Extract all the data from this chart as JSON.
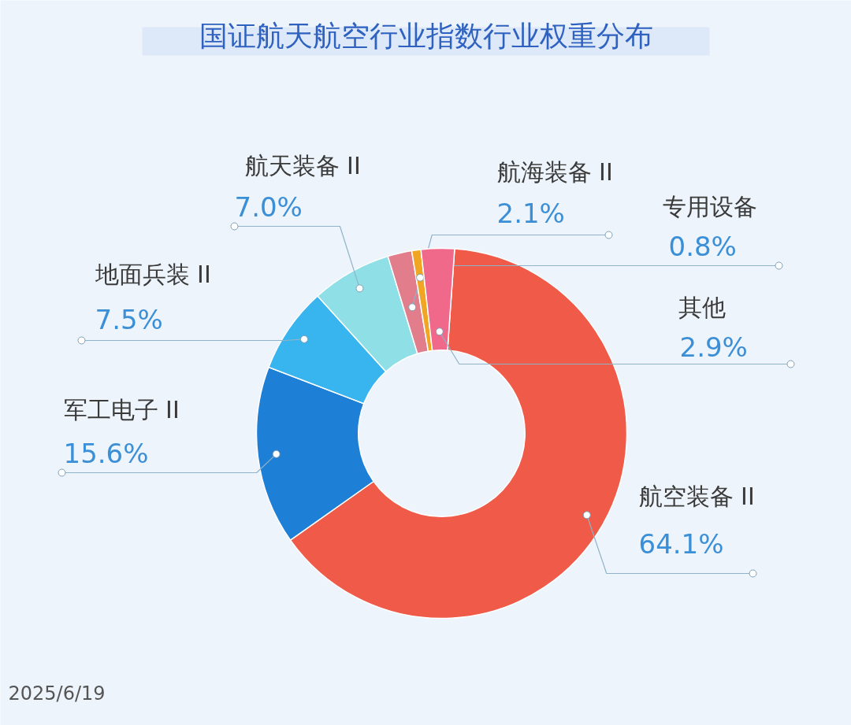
{
  "chart_data": {
    "type": "donut",
    "title": "国证航天航空行业指数行业权重分布",
    "categories": [
      "航空装备 II",
      "军工电子 II",
      "地面兵装 II",
      "航天装备 II",
      "航海装备 II",
      "专用设备",
      "其他"
    ],
    "values": [
      64.1,
      15.6,
      7.5,
      7.0,
      2.1,
      0.8,
      2.9
    ],
    "value_labels": [
      "64.1%",
      "15.6%",
      "7.5%",
      "7.0%",
      "2.1%",
      "0.8%",
      "2.9%"
    ],
    "colors": [
      "#f05a48",
      "#1e7fd6",
      "#38b4ee",
      "#8fe0e6",
      "#e27d8c",
      "#f0a623",
      "#f0688a"
    ],
    "annotations": [
      "2025/6/19"
    ]
  }
}
